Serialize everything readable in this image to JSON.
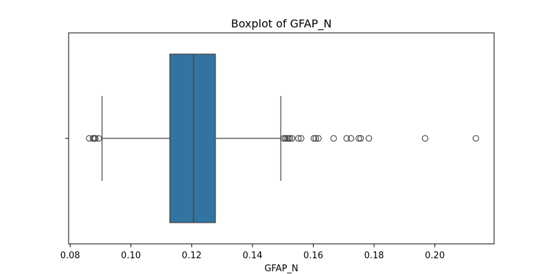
{
  "chart_data": {
    "type": "boxplot",
    "title": "Boxplot of GFAP_N",
    "xlabel": "GFAP_N",
    "ylabel": "",
    "xlim": [
      0.0795,
      0.2195
    ],
    "x_ticks": [
      "0.08",
      "0.10",
      "0.12",
      "0.14",
      "0.16",
      "0.18",
      "0.20"
    ],
    "orientation": "horizontal",
    "grid": false,
    "box_color": "#3274a1",
    "series": [
      {
        "whisker_low": 0.0905,
        "q1": 0.1128,
        "median": 0.1206,
        "q3": 0.1278,
        "whisker_high": 0.1493,
        "outliers": [
          0.0863,
          0.0875,
          0.0879,
          0.0883,
          0.0894,
          0.1503,
          0.1508,
          0.1513,
          0.1518,
          0.1523,
          0.153,
          0.1551,
          0.156,
          0.1602,
          0.1608,
          0.1617,
          0.1667,
          0.171,
          0.1724,
          0.175,
          0.1756,
          0.1783,
          0.1968,
          0.2135
        ]
      }
    ]
  }
}
